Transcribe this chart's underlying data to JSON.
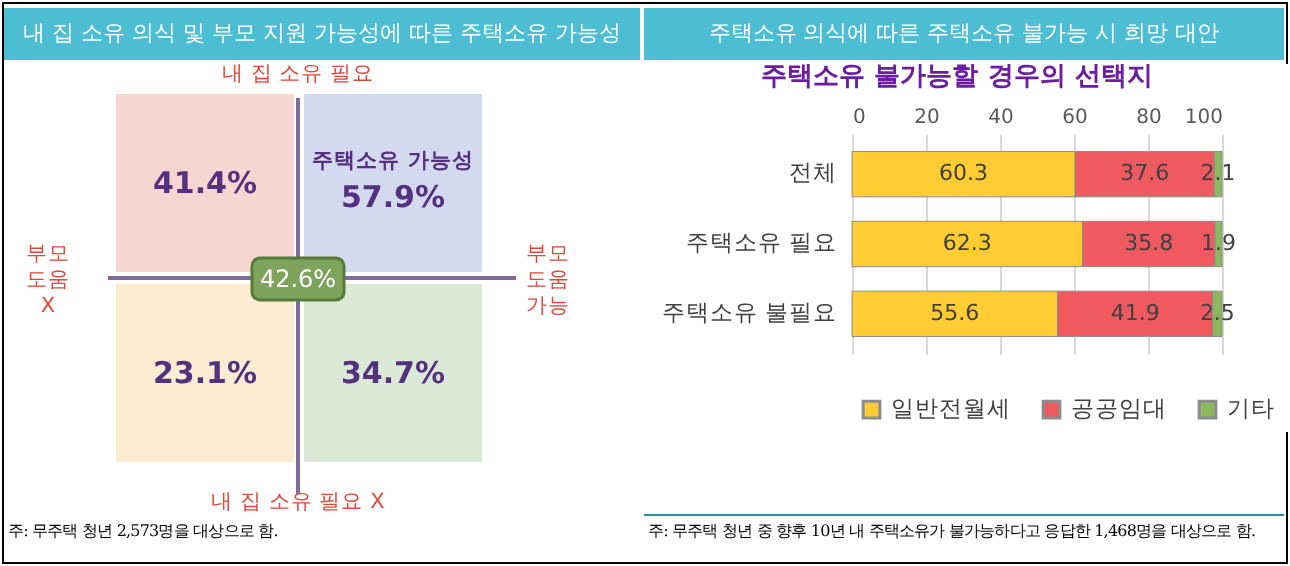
{
  "chart_data": [
    {
      "type": "other",
      "title": "내 집 소유 의식 및 부모 지원 가능성에 따른 주택소유 가능성",
      "categories": [
        null,
        "주택소유 가능성",
        null,
        null
      ],
      "value_labels": [
        "41.4%",
        "57.9%",
        "23.1%",
        "34.7%"
      ],
      "colors": [
        "#f6d6d0",
        "#d3d9ee",
        "#fdebd2",
        "#d9e9d6"
      ],
      "annotations": [
        "내 집 소유 필요",
        "내 집 소유 필요 X",
        "부모 도움 X",
        "부모 도움 가능",
        "42.6%",
        "주: 무주택 청년 2,573명을 대상으로 함."
      ]
    },
    {
      "type": "bar",
      "orientation": "horizontal",
      "stacked": true,
      "title": "주택소유 의식에 따른 주택소유 불가능 시 희망 대안",
      "subtitle": "주택소유 불가능할 경우의 선택지",
      "categories": [
        "전체",
        "주택소유 필요",
        "주택소유 불필요"
      ],
      "series": [
        {
          "name": "일반전월세",
          "color": "#ffcc33",
          "values": [
            60.3,
            62.3,
            55.6
          ]
        },
        {
          "name": "공공임대",
          "color": "#ee5a5f",
          "values": [
            37.6,
            35.8,
            41.9
          ]
        },
        {
          "name": "기타",
          "color": "#8cb85c",
          "values": [
            2.1,
            1.9,
            2.5
          ]
        }
      ],
      "xlim": [
        0,
        100
      ],
      "xticks": [
        0,
        20,
        40,
        60,
        80,
        100
      ],
      "grid": "x",
      "legend": "bottom",
      "data_labels": true,
      "annotations": [
        "주: 무주택 청년 중 향후 10년 내 주택소유가 불가능하다고 응답한 1,468명을 대상으로 함."
      ]
    }
  ]
}
